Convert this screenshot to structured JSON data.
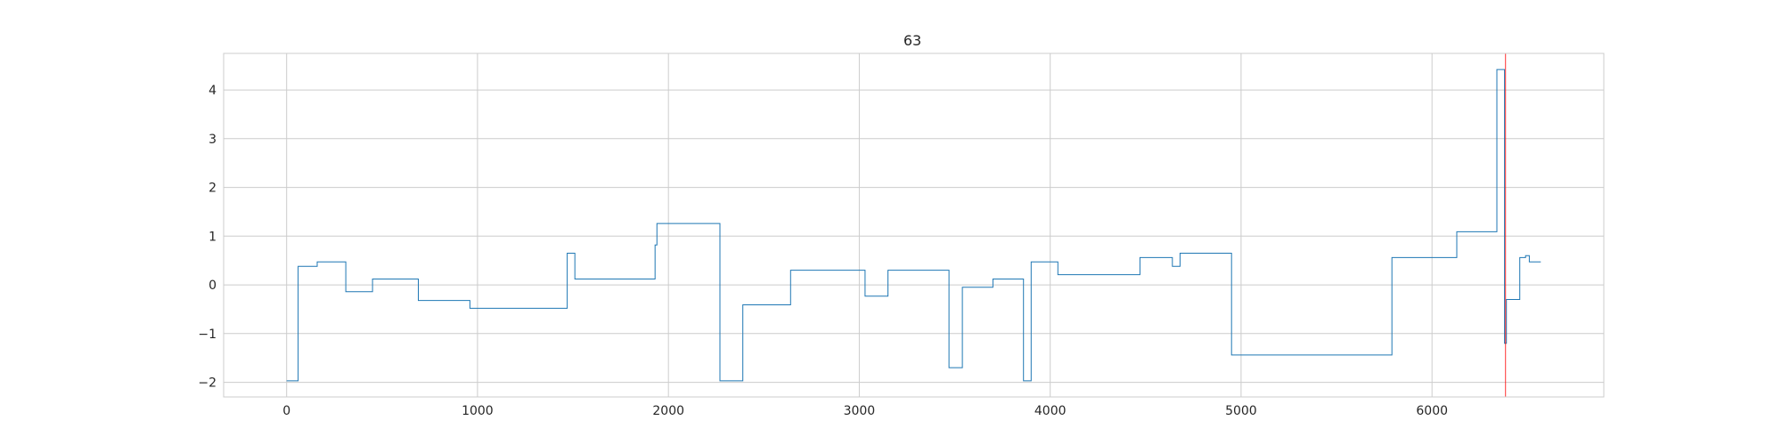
{
  "chart_data": {
    "type": "line",
    "title": "63",
    "xlabel": "",
    "ylabel": "",
    "xlim": [
      -330,
      6900
    ],
    "ylim": [
      -2.3,
      4.75
    ],
    "xticks": [
      0,
      1000,
      2000,
      3000,
      4000,
      5000,
      6000
    ],
    "yticks": [
      -2,
      -1,
      0,
      1,
      2,
      3,
      4
    ],
    "xtick_labels": [
      "0",
      "1000",
      "2000",
      "3000",
      "4000",
      "5000",
      "6000"
    ],
    "ytick_labels": [
      "−2",
      "−1",
      "0",
      "1",
      "2",
      "3",
      "4"
    ],
    "grid": true,
    "series": [
      {
        "color": "#1f77b4",
        "step": true,
        "points": [
          [
            0,
            -1.97
          ],
          [
            60,
            0.38
          ],
          [
            160,
            0.47
          ],
          [
            310,
            -0.14
          ],
          [
            450,
            0.12
          ],
          [
            690,
            -0.32
          ],
          [
            960,
            -0.48
          ],
          [
            1470,
            0.65
          ],
          [
            1510,
            0.12
          ],
          [
            1930,
            0.82
          ],
          [
            1940,
            1.26
          ],
          [
            2270,
            -1.97
          ],
          [
            2390,
            -0.41
          ],
          [
            2640,
            0.3
          ],
          [
            3030,
            -0.23
          ],
          [
            3150,
            0.3
          ],
          [
            3470,
            -1.7
          ],
          [
            3540,
            -0.05
          ],
          [
            3700,
            0.12
          ],
          [
            3860,
            -1.97
          ],
          [
            3900,
            0.47
          ],
          [
            4040,
            0.21
          ],
          [
            4470,
            0.56
          ],
          [
            4640,
            0.38
          ],
          [
            4680,
            0.65
          ],
          [
            4950,
            -1.44
          ],
          [
            5790,
            0.56
          ],
          [
            6130,
            1.09
          ],
          [
            6340,
            4.42
          ],
          [
            6380,
            -1.2
          ],
          [
            6390,
            -0.3
          ],
          [
            6460,
            0.56
          ],
          [
            6490,
            0.6
          ],
          [
            6510,
            0.47
          ],
          [
            6570,
            0.47
          ]
        ]
      }
    ],
    "vlines": [
      {
        "x": 6385,
        "color": "#ff0000"
      }
    ]
  }
}
